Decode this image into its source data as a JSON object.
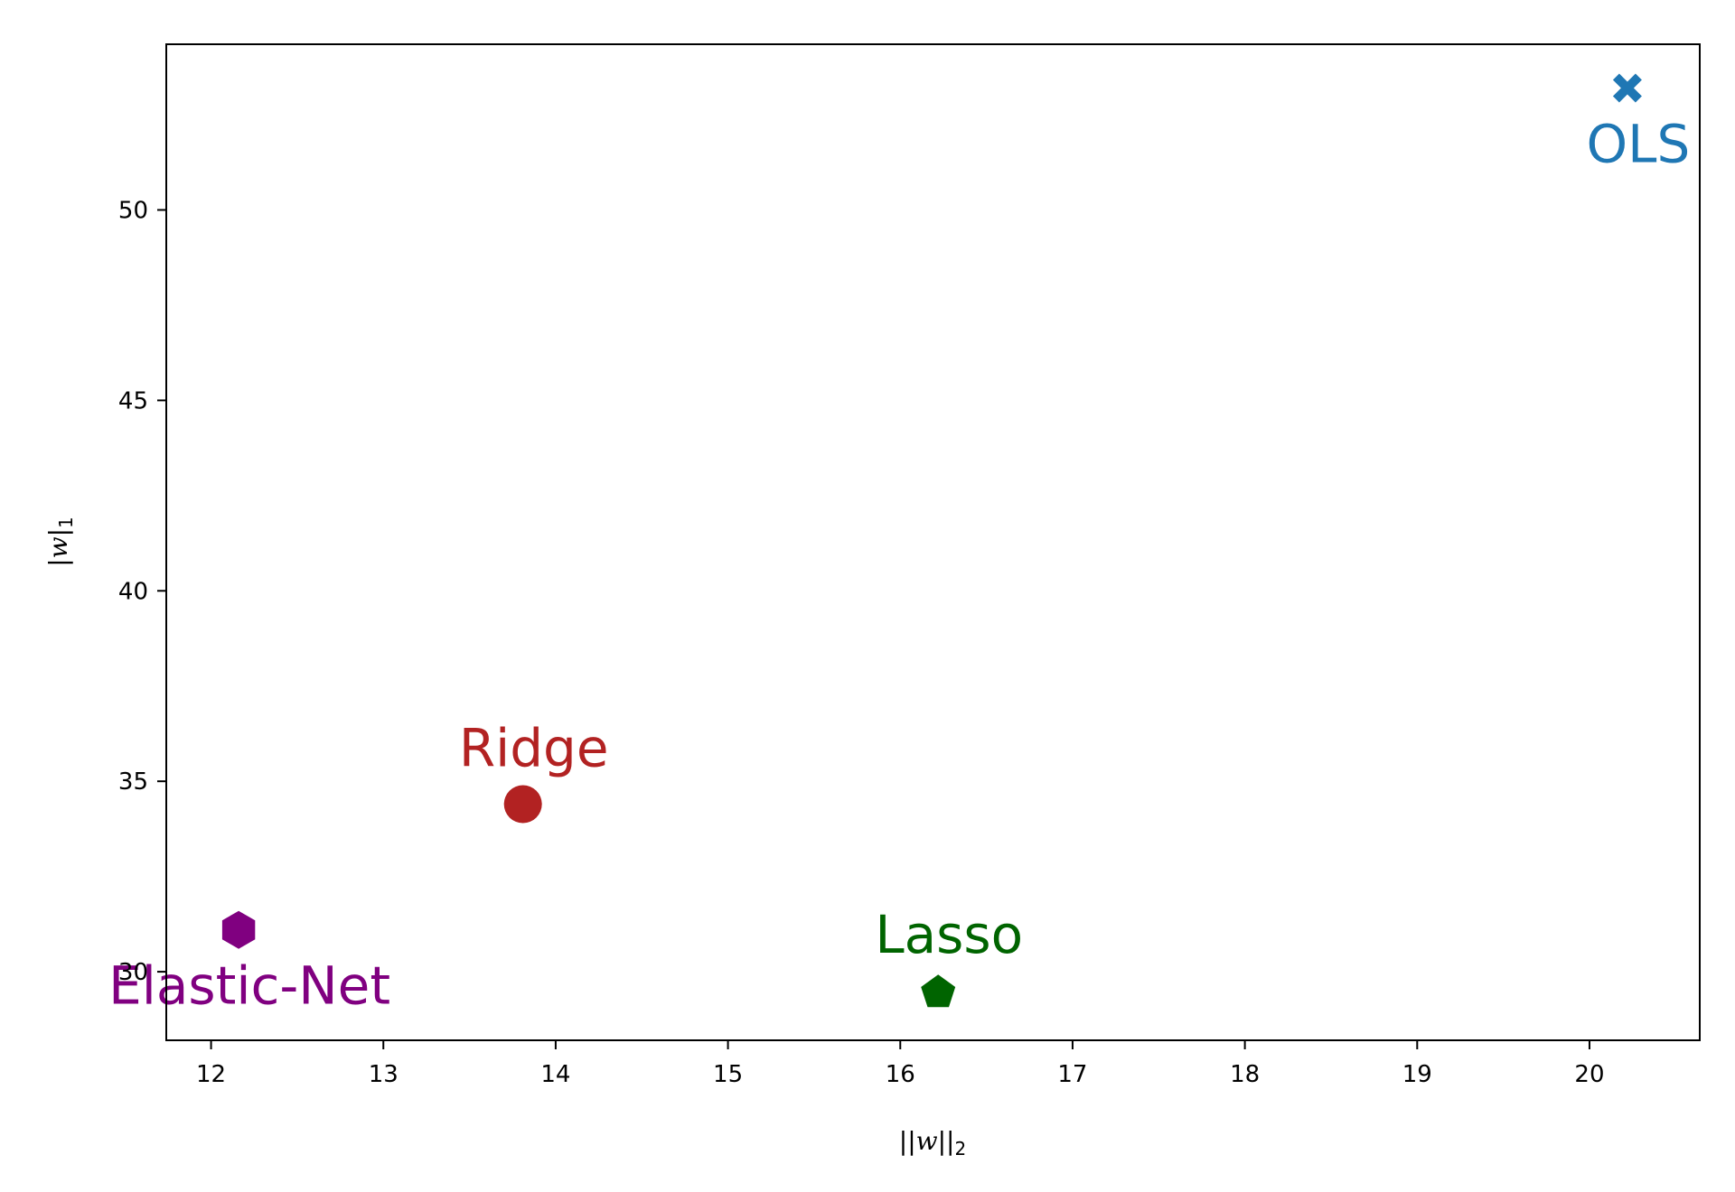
{
  "chart_data": {
    "type": "scatter",
    "title": "",
    "xlabel": {
      "pre": "||",
      "var": "w",
      "post": "||",
      "sub": "2"
    },
    "ylabel": {
      "pre": "|",
      "var": "w",
      "post": "|",
      "sub": "1"
    },
    "xlim": [
      11.74,
      20.64
    ],
    "ylim": [
      28.2,
      54.35
    ],
    "xticks": [
      12,
      13,
      14,
      15,
      16,
      17,
      18,
      19,
      20
    ],
    "yticks": [
      30,
      35,
      40,
      45,
      50
    ],
    "grid": false,
    "legend": "none",
    "points": [
      {
        "label": "OLS",
        "x": 20.22,
        "y": 53.2,
        "color": "#1f77b4",
        "marker": "x-filled",
        "label_position": "below"
      },
      {
        "label": "Ridge",
        "x": 13.81,
        "y": 34.4,
        "color": "#b22222",
        "marker": "circle",
        "label_position": "above"
      },
      {
        "label": "Lasso",
        "x": 16.22,
        "y": 29.5,
        "color": "#006400",
        "marker": "pentagon",
        "label_position": "above"
      },
      {
        "label": "Elastic-Net",
        "x": 12.16,
        "y": 31.1,
        "color": "#800080",
        "marker": "hexagon",
        "label_position": "below"
      }
    ]
  }
}
